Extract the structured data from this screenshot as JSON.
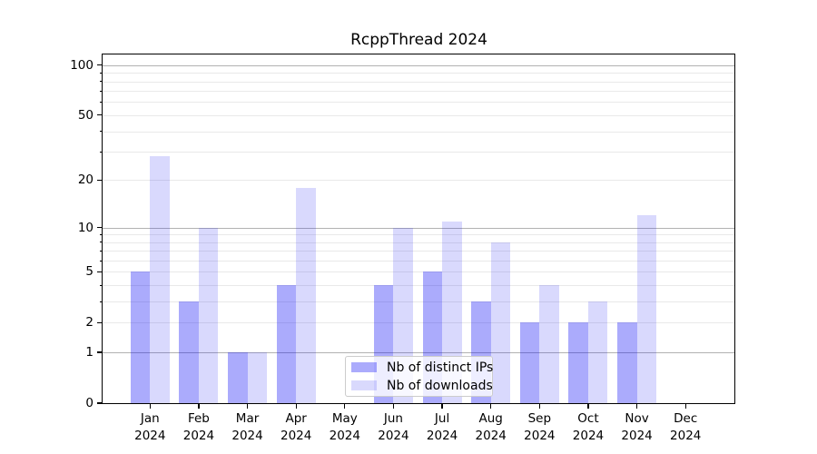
{
  "chart_data": {
    "type": "bar",
    "title": "RcppThread 2024",
    "categories": [
      {
        "month": "Jan",
        "year": "2024"
      },
      {
        "month": "Feb",
        "year": "2024"
      },
      {
        "month": "Mar",
        "year": "2024"
      },
      {
        "month": "Apr",
        "year": "2024"
      },
      {
        "month": "May",
        "year": "2024"
      },
      {
        "month": "Jun",
        "year": "2024"
      },
      {
        "month": "Jul",
        "year": "2024"
      },
      {
        "month": "Aug",
        "year": "2024"
      },
      {
        "month": "Sep",
        "year": "2024"
      },
      {
        "month": "Oct",
        "year": "2024"
      },
      {
        "month": "Nov",
        "year": "2024"
      },
      {
        "month": "Dec",
        "year": "2024"
      }
    ],
    "series": [
      {
        "name": "Nb of distinct IPs",
        "color": "rgba(10,10,245,0.34)",
        "values": [
          5,
          3,
          1,
          4,
          0,
          4,
          5,
          3,
          2,
          2,
          2,
          0
        ]
      },
      {
        "name": "Nb of downloads",
        "color": "rgba(10,10,245,0.155)",
        "values": [
          28,
          10,
          1,
          18,
          0,
          10,
          11,
          8,
          4,
          3,
          12,
          0
        ]
      }
    ],
    "yscale": "log1p",
    "ylim": [
      0,
      100
    ],
    "yticks": [
      0,
      1,
      2,
      5,
      10,
      20,
      50,
      100
    ],
    "grid": {
      "major": [
        1,
        10,
        100
      ],
      "minor": [
        2,
        3,
        4,
        5,
        6,
        7,
        8,
        9,
        20,
        30,
        40,
        50,
        60,
        70,
        80,
        90
      ]
    },
    "legend_position": "lower center",
    "colors": {
      "major_grid": "#b2b2b2",
      "minor_grid": "#e9e9e9",
      "spine": "#000000",
      "text": "#000000"
    }
  }
}
